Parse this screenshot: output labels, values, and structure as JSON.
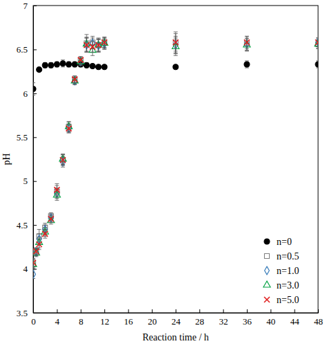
{
  "chart_data": {
    "type": "scatter",
    "x_label": "Reaction time / h",
    "y_label": "pH",
    "xlim": [
      0,
      48
    ],
    "xticks": [
      0,
      4,
      8,
      12,
      16,
      20,
      24,
      28,
      32,
      36,
      40,
      44,
      48
    ],
    "ylim": [
      3.5,
      7
    ],
    "yticks": [
      3.5,
      4,
      4.5,
      5,
      5.5,
      6,
      6.5,
      7
    ],
    "grid": false,
    "legend": "bottom-right",
    "series": [
      {
        "name": "n=0",
        "color": "#000000",
        "marker": "circle",
        "x": [
          0,
          1,
          2,
          3,
          4,
          5,
          6,
          7,
          8,
          9,
          10,
          11,
          12,
          24,
          36,
          48
        ],
        "values": [
          6.05,
          6.27,
          6.32,
          6.32,
          6.33,
          6.34,
          6.33,
          6.33,
          6.33,
          6.32,
          6.31,
          6.3,
          6.3,
          6.3,
          6.33,
          6.33
        ],
        "errors": [
          0.07,
          0.02,
          0.03,
          0.03,
          0.03,
          0.04,
          0.03,
          0.03,
          0.03,
          0.03,
          0.02,
          0.02,
          0.02,
          0.02,
          0.04,
          0.04
        ]
      },
      {
        "name": "n=0.5",
        "color": "#808080",
        "marker": "square",
        "x": [
          0,
          0.5,
          1,
          2,
          3,
          4,
          5,
          6,
          7,
          8,
          9,
          10,
          11,
          12,
          24,
          36,
          48
        ],
        "values": [
          4.06,
          4.2,
          4.37,
          4.47,
          4.6,
          4.88,
          5.24,
          5.62,
          6.15,
          6.37,
          6.57,
          6.58,
          6.55,
          6.58,
          6.58,
          6.57,
          6.56
        ],
        "errors": [
          0.05,
          0.04,
          0.08,
          0.05,
          0.04,
          0.07,
          0.06,
          0.06,
          0.04,
          0.04,
          0.1,
          0.07,
          0.08,
          0.06,
          0.12,
          0.08,
          0.05
        ]
      },
      {
        "name": "n=1.0",
        "color": "#2e75b6",
        "marker": "diamond",
        "x": [
          0,
          0.5,
          1,
          2,
          3,
          4,
          5,
          6,
          7,
          8,
          9,
          10,
          11,
          12,
          24,
          36,
          48
        ],
        "values": [
          3.94,
          4.19,
          4.34,
          4.45,
          4.58,
          4.86,
          5.22,
          5.6,
          6.14,
          6.36,
          6.55,
          6.57,
          6.54,
          6.56,
          6.55,
          6.56,
          6.58
        ],
        "errors": [
          0.05,
          0.04,
          0.06,
          0.05,
          0.04,
          0.06,
          0.06,
          0.05,
          0.04,
          0.04,
          0.08,
          0.06,
          0.07,
          0.06,
          0.1,
          0.07,
          0.05
        ]
      },
      {
        "name": "n=3.0",
        "color": "#00a040",
        "marker": "triangle",
        "x": [
          0,
          0.5,
          1,
          2,
          3,
          4,
          5,
          6,
          7,
          8,
          9,
          10,
          11,
          12,
          24,
          36,
          48
        ],
        "values": [
          4.05,
          4.18,
          4.3,
          4.42,
          4.55,
          4.84,
          5.25,
          5.62,
          6.14,
          6.36,
          6.56,
          6.49,
          6.55,
          6.57,
          6.53,
          6.55,
          6.56
        ],
        "errors": [
          0.05,
          0.04,
          0.06,
          0.05,
          0.04,
          0.06,
          0.06,
          0.05,
          0.04,
          0.04,
          0.08,
          0.06,
          0.07,
          0.06,
          0.1,
          0.07,
          0.05
        ]
      },
      {
        "name": "n=5.0",
        "color": "#e02020",
        "marker": "x",
        "x": [
          0,
          0.5,
          1,
          2,
          3,
          4,
          5,
          6,
          7,
          8,
          9,
          10,
          11,
          12,
          24,
          36,
          48
        ],
        "values": [
          4.07,
          4.2,
          4.28,
          4.4,
          4.57,
          4.9,
          5.24,
          5.6,
          6.16,
          6.38,
          6.55,
          6.53,
          6.55,
          6.58,
          6.58,
          6.58,
          6.58
        ],
        "errors": [
          0.05,
          0.04,
          0.06,
          0.05,
          0.04,
          0.07,
          0.06,
          0.05,
          0.04,
          0.04,
          0.08,
          0.06,
          0.07,
          0.06,
          0.1,
          0.07,
          0.05
        ]
      }
    ]
  }
}
